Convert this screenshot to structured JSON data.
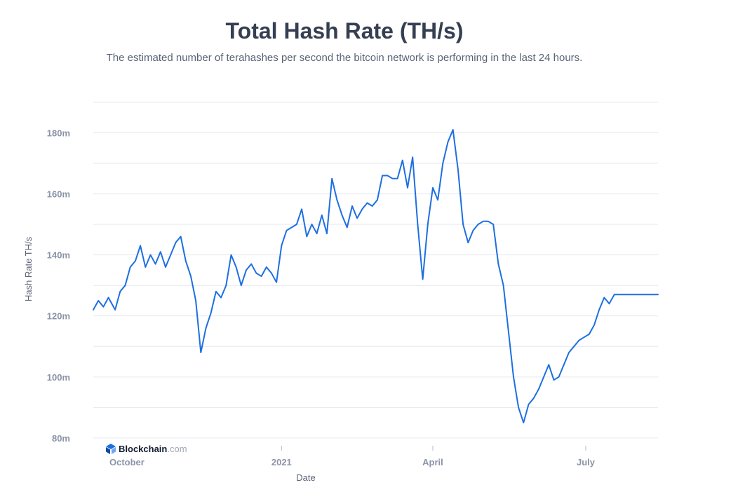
{
  "header": {
    "title": "Total Hash Rate (TH/s)",
    "subtitle": "The estimated number of terahashes per second the bitcoin network is performing in the last 24 hours."
  },
  "brand": {
    "name": "Blockchain",
    "suffix": ".com",
    "icon": "blockchain-cube-icon",
    "color": "#121d33"
  },
  "colors": {
    "line": "#1d6fe0",
    "grid": "#e6e9ef",
    "tick": "#8b93a6"
  },
  "chart_data": {
    "type": "line",
    "title": "Total Hash Rate (TH/s)",
    "xlabel": "Date",
    "ylabel": "Hash Rate TH/s",
    "ylim": [
      80,
      190
    ],
    "yticks": [
      80,
      100,
      120,
      140,
      160,
      180
    ],
    "ytick_labels": [
      "80m",
      "100m",
      "120m",
      "140m",
      "160m",
      "180m"
    ],
    "xlim": [
      "2020-09-11",
      "2021-08-13"
    ],
    "xticks": [
      {
        "label": "October",
        "x": "2020-10-01"
      },
      {
        "label": "2021",
        "x": "2021-01-01"
      },
      {
        "label": "April",
        "x": "2021-04-01"
      },
      {
        "label": "July",
        "x": "2021-07-01"
      }
    ],
    "grid": "horizontal",
    "series": [
      {
        "x": [
          "2020-09-11",
          "2020-09-14",
          "2020-09-17",
          "2020-09-20",
          "2020-09-24",
          "2020-09-27",
          "2020-09-30",
          "2020-10-03",
          "2020-10-06",
          "2020-10-09",
          "2020-10-12",
          "2020-10-15",
          "2020-10-18",
          "2020-10-21",
          "2020-10-24",
          "2020-10-27",
          "2020-10-30",
          "2020-11-02",
          "2020-11-05",
          "2020-11-08",
          "2020-11-11",
          "2020-11-14",
          "2020-11-17",
          "2020-11-20",
          "2020-11-23",
          "2020-11-26",
          "2020-11-29",
          "2020-12-02",
          "2020-12-05",
          "2020-12-08",
          "2020-12-11",
          "2020-12-14",
          "2020-12-17",
          "2020-12-20",
          "2020-12-23",
          "2020-12-26",
          "2020-12-29",
          "2021-01-01",
          "2021-01-04",
          "2021-01-07",
          "2021-01-10",
          "2021-01-13",
          "2021-01-16",
          "2021-01-19",
          "2021-01-22",
          "2021-01-25",
          "2021-01-28",
          "2021-01-31",
          "2021-02-03",
          "2021-02-06",
          "2021-02-09",
          "2021-02-12",
          "2021-02-15",
          "2021-02-18",
          "2021-02-21",
          "2021-02-24",
          "2021-02-27",
          "2021-03-02",
          "2021-03-05",
          "2021-03-08",
          "2021-03-11",
          "2021-03-14",
          "2021-03-17",
          "2021-03-20",
          "2021-03-23",
          "2021-03-26",
          "2021-03-29",
          "2021-04-01",
          "2021-04-04",
          "2021-04-07",
          "2021-04-10",
          "2021-04-13",
          "2021-04-16",
          "2021-04-19",
          "2021-04-22",
          "2021-04-25",
          "2021-04-28",
          "2021-05-01",
          "2021-05-04",
          "2021-05-07",
          "2021-05-10",
          "2021-05-13",
          "2021-05-16",
          "2021-05-19",
          "2021-05-22",
          "2021-05-25",
          "2021-05-28",
          "2021-05-31",
          "2021-06-03",
          "2021-06-06",
          "2021-06-09",
          "2021-06-12",
          "2021-06-15",
          "2021-06-18",
          "2021-06-21",
          "2021-06-24",
          "2021-06-27",
          "2021-06-30",
          "2021-07-03",
          "2021-07-06",
          "2021-07-09",
          "2021-07-12",
          "2021-07-15",
          "2021-07-18",
          "2021-07-21",
          "2021-07-24",
          "2021-07-27",
          "2021-07-30",
          "2021-08-02",
          "2021-08-05",
          "2021-08-08",
          "2021-08-11",
          "2021-08-13"
        ],
        "y": [
          122,
          125,
          123,
          126,
          122,
          128,
          130,
          136,
          138,
          143,
          136,
          140,
          137,
          141,
          136,
          140,
          144,
          146,
          138,
          133,
          125,
          108,
          116,
          121,
          128,
          126,
          130,
          140,
          136,
          130,
          135,
          137,
          134,
          133,
          136,
          134,
          131,
          143,
          148,
          149,
          150,
          155,
          146,
          150,
          147,
          153,
          147,
          165,
          158,
          153,
          149,
          156,
          152,
          155,
          157,
          156,
          158,
          166,
          166,
          165,
          165,
          171,
          162,
          172,
          150,
          132,
          150,
          162,
          158,
          170,
          177,
          181,
          168,
          150,
          144,
          148,
          150,
          151,
          151,
          150,
          137,
          130,
          115,
          100,
          90,
          85,
          91,
          93,
          96,
          100,
          104,
          99,
          100,
          104,
          108,
          110,
          112,
          113,
          114,
          117,
          122,
          126,
          124,
          127,
          127,
          127,
          127,
          127,
          127,
          127,
          127,
          127,
          127
        ]
      }
    ]
  }
}
